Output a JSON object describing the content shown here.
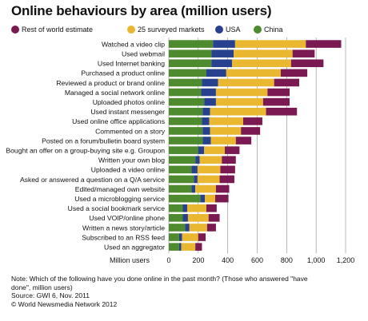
{
  "title": "Online behaviours by area (million users)",
  "colors": {
    "rest_of_world": "#7b1a52",
    "surveyed_markets": "#e9b730",
    "usa": "#27418f",
    "china": "#4e8a2e",
    "grid": "#8a8a8a"
  },
  "legend": [
    {
      "label": "Rest of world estimate",
      "color_key": "rest_of_world"
    },
    {
      "label": "25 surveyed markets",
      "color_key": "surveyed_markets"
    },
    {
      "label": "USA",
      "color_key": "usa"
    },
    {
      "label": "China",
      "color_key": "china"
    }
  ],
  "chart_data": {
    "type": "bar",
    "orientation": "horizontal",
    "stacked": true,
    "title": "Online behaviours by area (million users)",
    "xlabel": "Million users",
    "xlim": [
      0,
      1200
    ],
    "xticks": [
      0,
      200,
      400,
      600,
      800,
      "1,000",
      "1,200"
    ],
    "grid": true,
    "legend_position": "top",
    "categories": [
      "Watched a video clip",
      "Used webmail",
      "Used Internet banking",
      "Purchased a product online",
      "Reviewed a product or brand online",
      "Managed a social network online",
      "Uploaded photos online",
      "Used instant messenger",
      "Used online office applications",
      "Commented on a story",
      "Posted on a forum/bulletin board system",
      "Bought an offer on a group-buying site e.g. Groupon",
      "Written your own blog",
      "Uploaded a video online",
      "Asked or answered a question on a Q/A service",
      "Edited/managed own website",
      "Used a microblogging service",
      "Used a social bookmark service",
      "Used VOIP/online phone",
      "Written a news story/article",
      "Subscribed to an RSS feed",
      "Used an aggregator"
    ],
    "series": [
      {
        "name": "China",
        "color_key": "china",
        "values": [
          300,
          290,
          290,
          255,
          225,
          220,
          240,
          230,
          225,
          230,
          230,
          200,
          180,
          155,
          170,
          155,
          215,
          95,
          95,
          110,
          70,
          70
        ]
      },
      {
        "name": "USA",
        "color_key": "usa",
        "values": [
          150,
          150,
          140,
          135,
          110,
          100,
          80,
          50,
          50,
          50,
          55,
          40,
          30,
          40,
          25,
          25,
          30,
          30,
          35,
          30,
          20,
          15
        ]
      },
      {
        "name": "25 surveyed markets",
        "color_key": "surveyed_markets",
        "values": [
          480,
          400,
          400,
          370,
          380,
          350,
          320,
          380,
          230,
          210,
          170,
          140,
          150,
          155,
          150,
          140,
          70,
          130,
          140,
          120,
          110,
          95
        ]
      },
      {
        "name": "Rest of world estimate",
        "color_key": "rest_of_world",
        "values": [
          240,
          150,
          220,
          180,
          170,
          150,
          180,
          210,
          130,
          130,
          105,
          100,
          95,
          100,
          100,
          90,
          90,
          70,
          75,
          60,
          50,
          45
        ]
      }
    ]
  },
  "notes": [
    "Note: Which of the following have you done online in the past month? (Those who answered \"have",
    "done\", million users)",
    "Source: GWI 6, Nov. 2011",
    "© World Newsmedia Network 2012"
  ]
}
